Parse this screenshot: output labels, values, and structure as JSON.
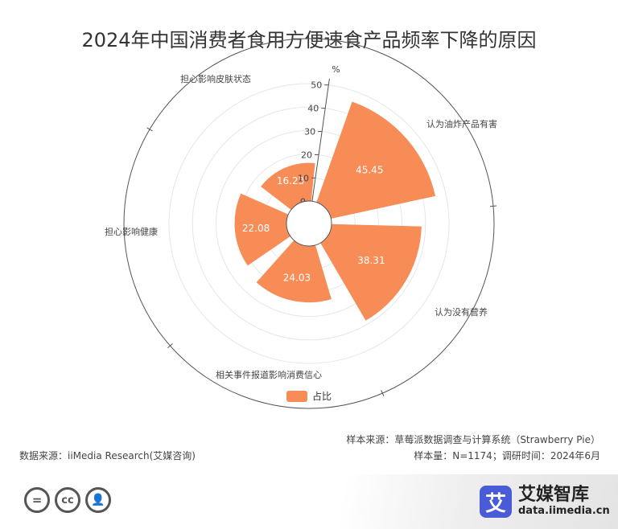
{
  "page": {
    "source_left": "数据来源：iiMedia Research(艾媒咨询)",
    "source_right_1": "样本来源：草莓派数据调查与计算系统（Strawberry Pie）",
    "source_right_2": "样本量：N=1174；调研时间：2024年6月",
    "logo_mark": "艾",
    "logo_name": "艾媒智库",
    "logo_url": "data.iimedia.cn",
    "cc_icons": [
      "equals-icon",
      "cc-icon",
      "person-icon"
    ],
    "cc_glyphs": [
      "=",
      "cc",
      "👤"
    ]
  },
  "chart_data": {
    "type": "polar-bar",
    "title": "2024年中国消费者食用方便速食产品频率下降的原因",
    "unit": "%",
    "categories": [
      "认为油炸产品有害",
      "认为没有营养",
      "相关事件报道影响消费信心",
      "担心影响健康",
      "担心影响皮肤状态"
    ],
    "series": [
      {
        "name": "占比",
        "values": [
          45.45,
          38.31,
          24.03,
          22.08,
          16.23
        ]
      }
    ],
    "value_labels": [
      "45.45",
      "38.31",
      "24.03",
      "22.08",
      "16.23"
    ],
    "radial_ticks": [
      "0",
      "10",
      "20",
      "30",
      "40",
      "50"
    ],
    "rlim": [
      0,
      50
    ],
    "colors": {
      "bar": "#f88c56",
      "axis": "#555555",
      "grid": "#e6e6e6"
    },
    "legend_position": "bottom-center"
  }
}
